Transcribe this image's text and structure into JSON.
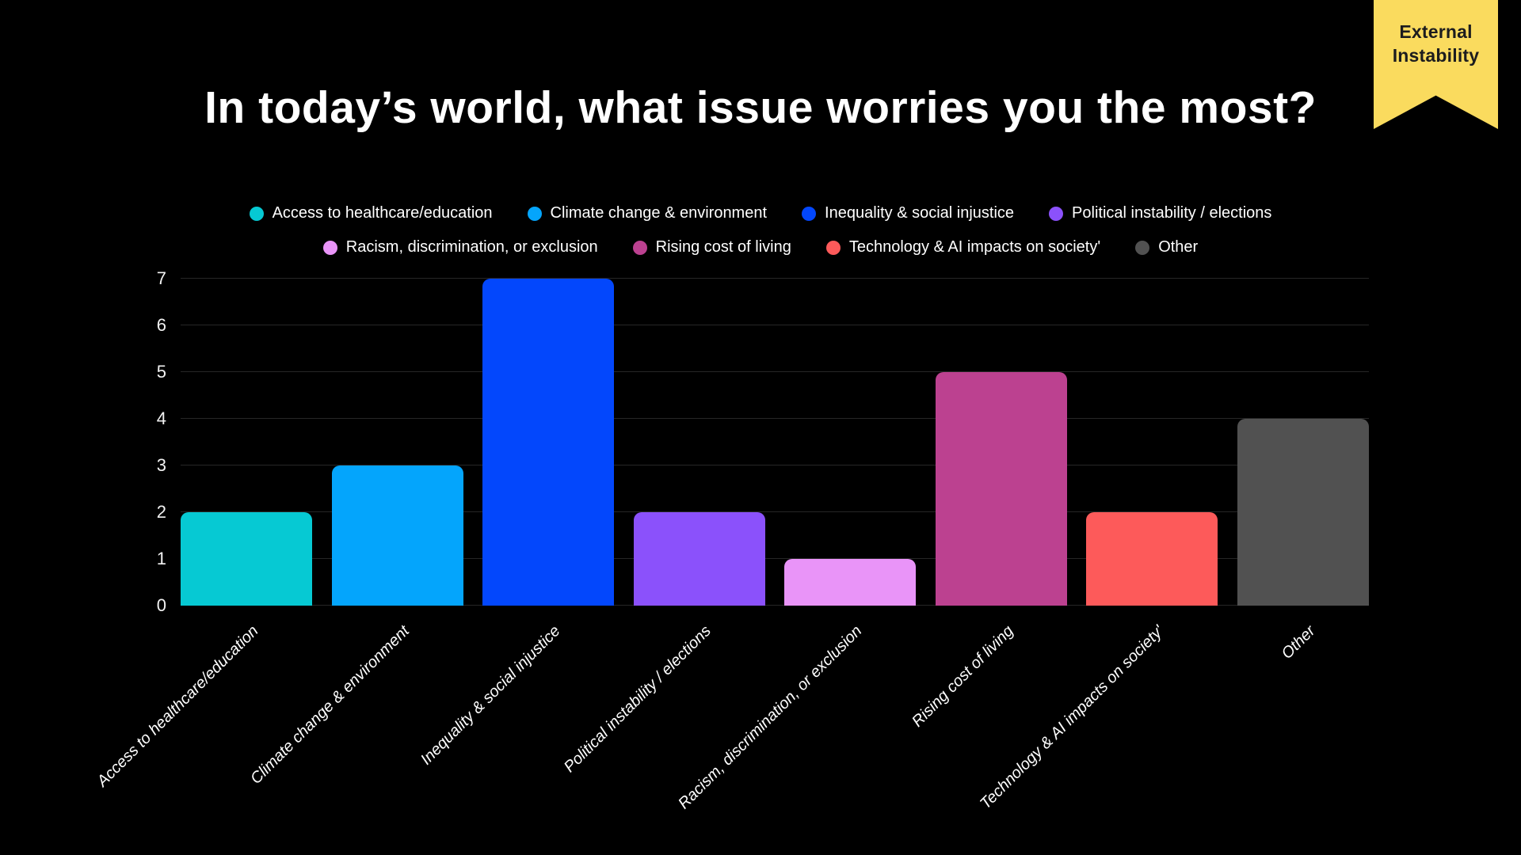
{
  "page": {
    "background": "#000000"
  },
  "title": "In today’s world, what issue worries you the most?",
  "ribbon": {
    "line1": "External",
    "line2": "Instability",
    "bg_color": "#FADB5E",
    "text_color": "#1C1C1E"
  },
  "legend": {
    "rows": [
      [
        {
          "label": "Access to healthcare/education",
          "color": "#06C9D3"
        },
        {
          "label": "Climate change & environment",
          "color": "#04A5FC"
        },
        {
          "label": "Inequality & social injustice",
          "color": "#0347FC"
        },
        {
          "label": "Political instability / elections",
          "color": "#8B51FB"
        }
      ],
      [
        {
          "label": "Racism, discrimination, or exclusion",
          "color": "#E994F8"
        },
        {
          "label": "Rising cost of living",
          "color": "#BC4190"
        },
        {
          "label": "Technology & AI impacts on society'",
          "color": "#FD5A5A"
        },
        {
          "label": "Other",
          "color": "#515151"
        }
      ]
    ]
  },
  "chart_data": {
    "type": "bar",
    "title": "In today’s world, what issue worries you the most?",
    "categories": [
      "Access to healthcare/education",
      "Climate change & environment",
      "Inequality & social injustice",
      "Political instability / elections",
      "Racism, discrimination, or exclusion",
      "Rising cost of living",
      "Technology & AI impacts on society'",
      "Other"
    ],
    "values": [
      2,
      3,
      7,
      2,
      1,
      5,
      2,
      4
    ],
    "colors": [
      "#06C9D3",
      "#04A5FC",
      "#0347FC",
      "#8B51FB",
      "#E994F8",
      "#BC4190",
      "#FD5A5A",
      "#515151"
    ],
    "xlabel": "",
    "ylabel": "",
    "ylim": [
      0,
      7
    ],
    "yticks": [
      0,
      1,
      2,
      3,
      4,
      5,
      6,
      7
    ],
    "grid": true,
    "gridline_color": "#262626",
    "background_color": "#000000",
    "legend_position": "top",
    "xtick_style": "italic, rotated 45deg",
    "bar_corner_radius_px": 10
  }
}
